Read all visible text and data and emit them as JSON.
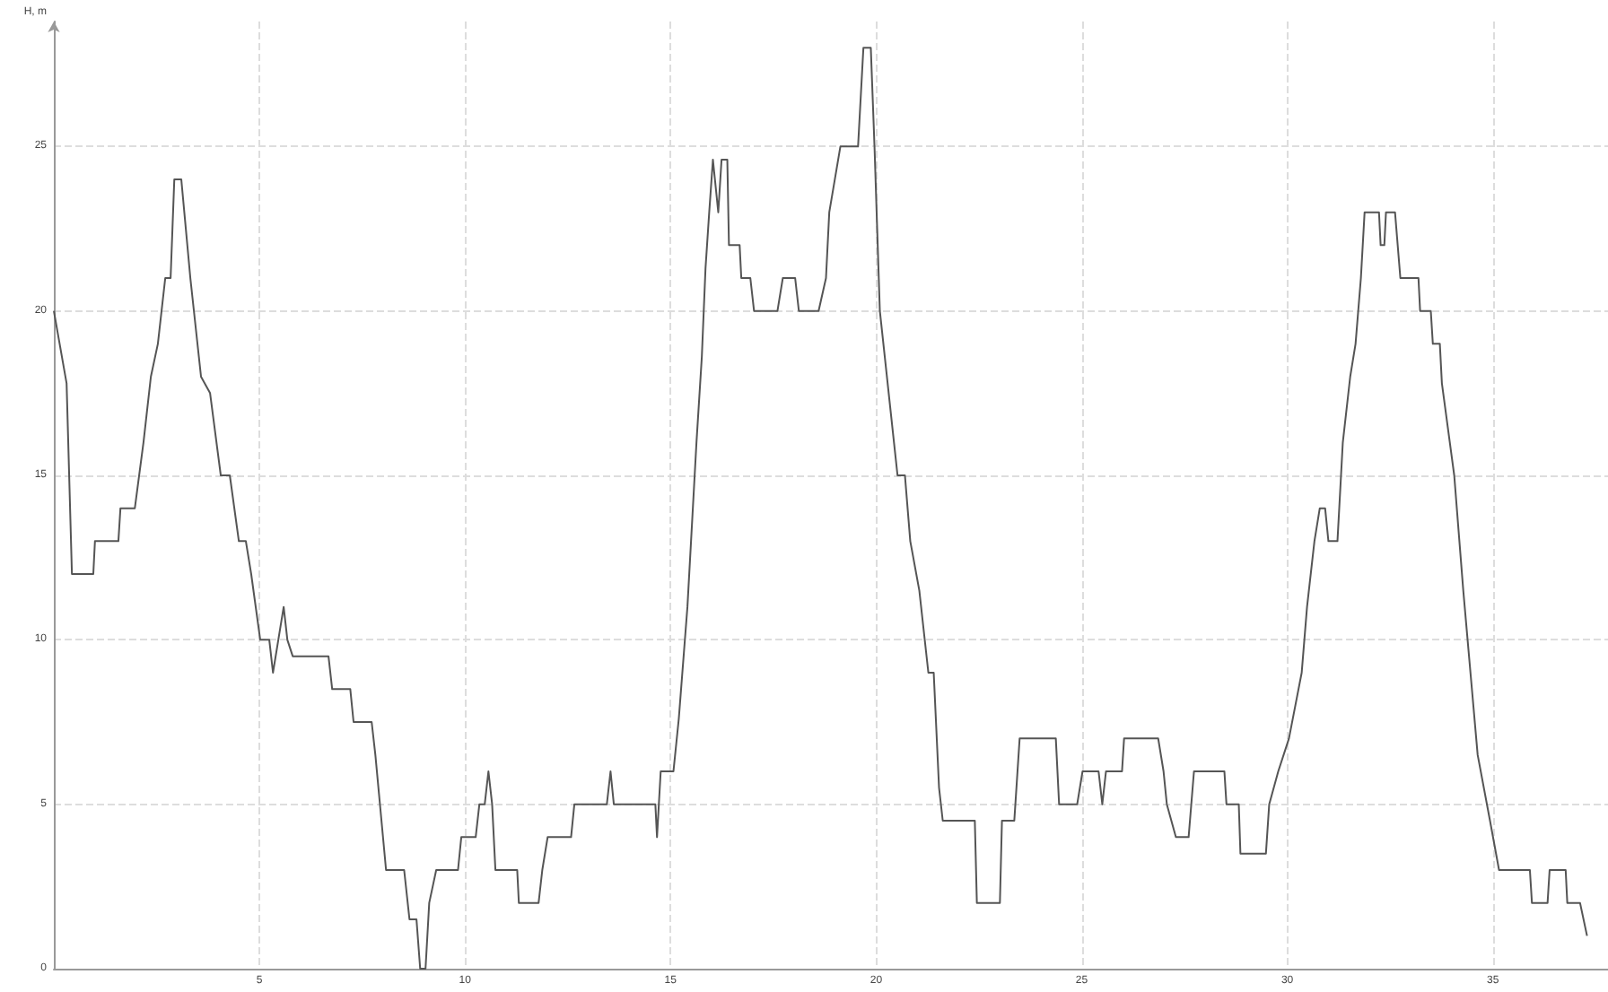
{
  "chart_data": {
    "type": "line",
    "ylabel": "H, m",
    "x": [
      0,
      0.31,
      0.44,
      0.96,
      1.0,
      1.57,
      1.62,
      1.97,
      2.18,
      2.36,
      2.53,
      2.62,
      2.71,
      2.84,
      2.93,
      3.1,
      3.32,
      3.58,
      3.8,
      4.06,
      4.28,
      4.5,
      4.67,
      4.8,
      5.02,
      5.24,
      5.33,
      5.46,
      5.59,
      5.68,
      5.81,
      6.68,
      6.77,
      7.21,
      7.29,
      7.73,
      7.82,
      8.08,
      8.52,
      8.65,
      8.82,
      8.91,
      9.04,
      9.13,
      9.3,
      9.83,
      9.91,
      10.26,
      10.35,
      10.48,
      10.57,
      10.66,
      10.74,
      11.27,
      11.31,
      11.79,
      11.88,
      12.01,
      12.58,
      12.66,
      13.45,
      13.54,
      13.62,
      14.63,
      14.67,
      14.76,
      15.07,
      15.2,
      15.41,
      15.63,
      15.76,
      15.85,
      15.94,
      16.03,
      16.16,
      16.24,
      16.38,
      16.42,
      16.68,
      16.72,
      16.94,
      17.03,
      17.6,
      17.73,
      18.03,
      18.12,
      18.6,
      18.78,
      18.86,
      19.13,
      19.56,
      19.69,
      19.87,
      19.96,
      20.09,
      20.52,
      20.7,
      20.83,
      21.05,
      21.27,
      21.4,
      21.53,
      21.62,
      22.4,
      22.45,
      23.01,
      23.06,
      23.36,
      23.49,
      24.37,
      24.45,
      24.89,
      25.02,
      25.41,
      25.5,
      25.59,
      25.98,
      26.03,
      26.86,
      26.99,
      27.07,
      27.29,
      27.6,
      27.73,
      28.47,
      28.52,
      28.82,
      28.86,
      29.48,
      29.56,
      29.78,
      30.04,
      30.35,
      30.48,
      30.66,
      30.79,
      30.92,
      31.0,
      31.22,
      31.35,
      31.53,
      31.66,
      31.79,
      31.88,
      32.23,
      32.27,
      32.36,
      32.4,
      32.62,
      32.75,
      33.19,
      33.23,
      33.49,
      33.54,
      33.71,
      33.76,
      34.06,
      34.28,
      34.63,
      34.93,
      35.15,
      35.9,
      35.95,
      36.33,
      36.38,
      36.77,
      36.81,
      37.12,
      37.29
    ],
    "series": [
      {
        "color": "#555555",
        "values": [
          20,
          17.8,
          12,
          12,
          13,
          13,
          14,
          14,
          16,
          18,
          19,
          20,
          21,
          21,
          24,
          24,
          21,
          18,
          17.5,
          15,
          15,
          13,
          13,
          12,
          10,
          10,
          9,
          10,
          11,
          10,
          9.5,
          9.5,
          8.5,
          8.5,
          7.5,
          7.5,
          6.5,
          3,
          3,
          1.5,
          1.5,
          0,
          0,
          2,
          3,
          3,
          4,
          4,
          5,
          5,
          6,
          5,
          3,
          3,
          2,
          2,
          3,
          4,
          4,
          5,
          5,
          6,
          5,
          5,
          4,
          6,
          6,
          7.6,
          11,
          16,
          18.6,
          21.3,
          23,
          24.6,
          23,
          24.6,
          24.6,
          22,
          22,
          21,
          21,
          20,
          20,
          21,
          21,
          20,
          20,
          21,
          23,
          25,
          25,
          28,
          28,
          25,
          20,
          15,
          15,
          13,
          11.5,
          9,
          9,
          5.5,
          4.5,
          4.5,
          2,
          2,
          4.5,
          4.5,
          7,
          7,
          5,
          5,
          6,
          6,
          5,
          6,
          6,
          7,
          7,
          6,
          5,
          4,
          4,
          6,
          6,
          5,
          5,
          3.5,
          3.5,
          5,
          6,
          7,
          9,
          11,
          13,
          14,
          14,
          13,
          13,
          16,
          18,
          19,
          21,
          23,
          23,
          22,
          22,
          23,
          23,
          21,
          21,
          20,
          20,
          19,
          19,
          17.8,
          15,
          11.5,
          6.5,
          4.5,
          3,
          3,
          2,
          2,
          3,
          3,
          2,
          2,
          1
        ]
      }
    ],
    "xlim": [
      0,
      37.8
    ],
    "xticks": [
      5,
      10,
      15,
      20,
      25,
      30,
      35
    ],
    "ylim": [
      0,
      28.8
    ],
    "yticks": [
      0,
      5,
      10,
      15,
      20,
      25
    ],
    "grid": true,
    "marker": "none",
    "line_style": "solid"
  }
}
